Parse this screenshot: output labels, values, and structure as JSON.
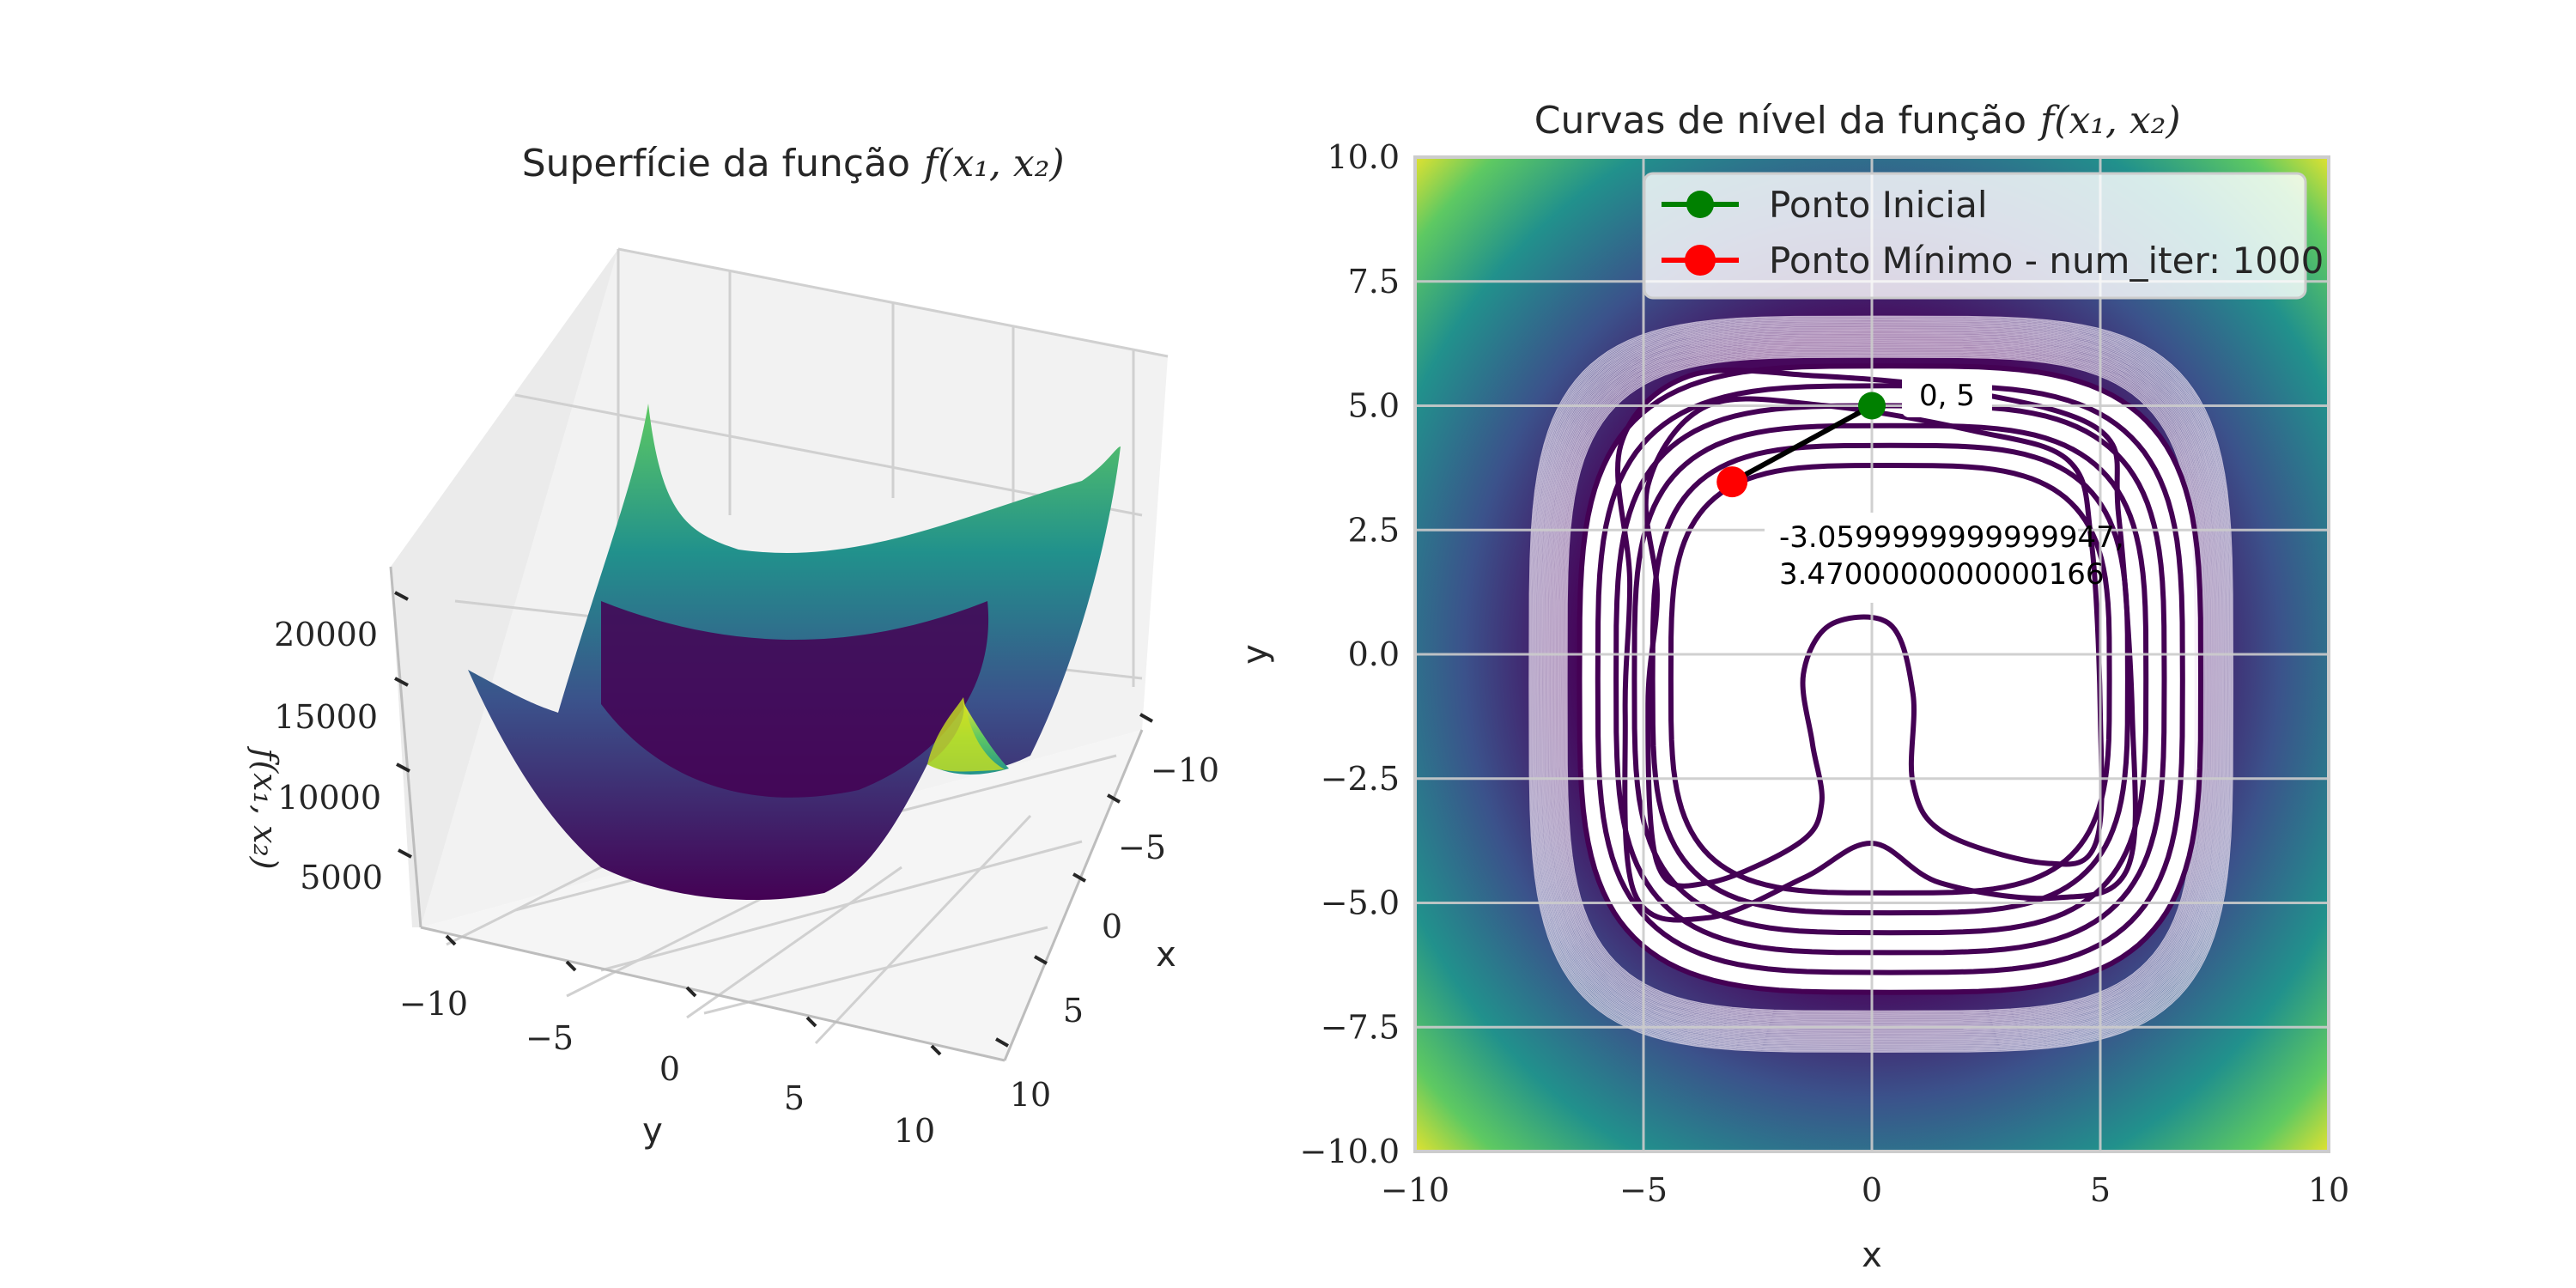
{
  "chart_data": [
    {
      "type": "surface",
      "title_prefix": "Superfície da função",
      "title_math": "f(x₁, x₂)",
      "xlabel": "x",
      "ylabel": "y",
      "zlabel": "f(x₁, x₂)",
      "x_ticks": [
        "−10",
        "−5",
        "0",
        "5",
        "10"
      ],
      "y_ticks": [
        "−10",
        "−5",
        "0",
        "5",
        "10"
      ],
      "z_ticks": [
        "5000",
        "10000",
        "15000",
        "20000"
      ],
      "xlim": [
        -10,
        10
      ],
      "ylim": [
        -10,
        10
      ],
      "colormap": "viridis"
    },
    {
      "type": "contour",
      "title_prefix": "Curvas de nível da função",
      "title_math": "f(x₁, x₂)",
      "xlabel": "x",
      "ylabel": "y",
      "xlim": [
        -10,
        10
      ],
      "ylim": [
        -10,
        10
      ],
      "x_ticks": [
        "−10",
        "−5",
        "0",
        "5",
        "10"
      ],
      "y_ticks": [
        "10.0",
        "7.5",
        "5.0",
        "2.5",
        "0.0",
        "−2.5",
        "−5.0",
        "−7.5",
        "−10.0"
      ],
      "grid": true,
      "legend_position": "top-right",
      "colormap": "viridis",
      "legend": [
        {
          "label": "Ponto Inicial",
          "color": "#008000"
        },
        {
          "label": "Ponto Mínimo - num_iter: 1000",
          "color": "#ff0000"
        }
      ],
      "points": [
        {
          "name": "Ponto Inicial",
          "x": 0,
          "y": 5,
          "label": "0, 5",
          "color": "#008000"
        },
        {
          "name": "Ponto Mínimo",
          "x": -3.0599999999999947,
          "y": 3.4700000000000166,
          "label_line1": "-3.0599999999999947,",
          "label_line2": "3.4700000000000166",
          "color": "#ff0000"
        }
      ],
      "num_iter": 1000
    }
  ]
}
